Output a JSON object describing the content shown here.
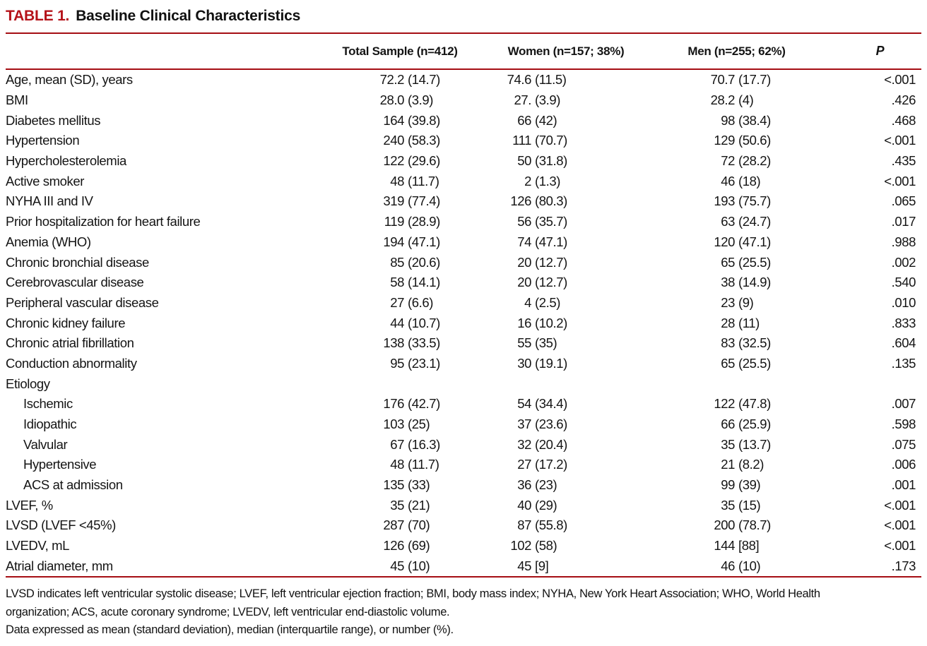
{
  "accent": {
    "title_red": "#b51219",
    "rule_red": "#a50e13"
  },
  "title": {
    "label": "TABLE 1.",
    "text": "Baseline Clinical Characteristics"
  },
  "header": {
    "stub": "",
    "total": "Total Sample (n=412)",
    "women": "Women (n=157; 38%)",
    "men": "Men (n=255; 62%)",
    "p": "P"
  },
  "rows": [
    {
      "label": "Age, mean (SD), years",
      "indent": 0,
      "total": [
        "72.2",
        "(14.7)"
      ],
      "women": [
        "74.6",
        "(11.5)"
      ],
      "men": [
        "70.7",
        "(17.7)"
      ],
      "p": "<.001"
    },
    {
      "label": "BMI",
      "indent": 0,
      "total": [
        "28.0",
        "(3.9)"
      ],
      "women": [
        "27.",
        "(3.9)"
      ],
      "men": [
        "28.2",
        "(4)"
      ],
      "p": ".426"
    },
    {
      "label": "Diabetes mellitus",
      "indent": 0,
      "total": [
        "164",
        "(39.8)"
      ],
      "women": [
        "66",
        "(42)"
      ],
      "men": [
        "98",
        "(38.4)"
      ],
      "p": ".468"
    },
    {
      "label": "Hypertension",
      "indent": 0,
      "total": [
        "240",
        "(58.3)"
      ],
      "women": [
        "111",
        "(70.7)"
      ],
      "men": [
        "129",
        "(50.6)"
      ],
      "p": "<.001"
    },
    {
      "label": "Hypercholesterolemia",
      "indent": 0,
      "total": [
        "122",
        "(29.6)"
      ],
      "women": [
        "50",
        "(31.8)"
      ],
      "men": [
        "72",
        "(28.2)"
      ],
      "p": ".435"
    },
    {
      "label": "Active smoker",
      "indent": 0,
      "total": [
        "48",
        "(11.7)"
      ],
      "women": [
        "2",
        "(1.3)"
      ],
      "men": [
        "46",
        "(18)"
      ],
      "p": "<.001"
    },
    {
      "label": "NYHA III and IV",
      "indent": 0,
      "total": [
        "319",
        "(77.4)"
      ],
      "women": [
        "126",
        "(80.3)"
      ],
      "men": [
        "193",
        "(75.7)"
      ],
      "p": ".065"
    },
    {
      "label": "Prior hospitalization for heart failure",
      "indent": 0,
      "total": [
        "119",
        "(28.9)"
      ],
      "women": [
        "56",
        "(35.7)"
      ],
      "men": [
        "63",
        "(24.7)"
      ],
      "p": ".017"
    },
    {
      "label": "Anemia (WHO)",
      "indent": 0,
      "total": [
        "194",
        "(47.1)"
      ],
      "women": [
        "74",
        "(47.1)"
      ],
      "men": [
        "120",
        "(47.1)"
      ],
      "p": ".988"
    },
    {
      "label": "Chronic bronchial disease",
      "indent": 0,
      "total": [
        "85",
        "(20.6)"
      ],
      "women": [
        "20",
        "(12.7)"
      ],
      "men": [
        "65",
        "(25.5)"
      ],
      "p": ".002"
    },
    {
      "label": "Cerebrovascular disease",
      "indent": 0,
      "total": [
        "58",
        "(14.1)"
      ],
      "women": [
        "20",
        "(12.7)"
      ],
      "men": [
        "38",
        "(14.9)"
      ],
      "p": ".540"
    },
    {
      "label": "Peripheral vascular disease",
      "indent": 0,
      "total": [
        "27",
        "(6.6)"
      ],
      "women": [
        "4",
        "(2.5)"
      ],
      "men": [
        "23",
        "(9)"
      ],
      "p": ".010"
    },
    {
      "label": "Chronic kidney failure",
      "indent": 0,
      "total": [
        "44",
        "(10.7)"
      ],
      "women": [
        "16",
        "(10.2)"
      ],
      "men": [
        "28",
        "(11)"
      ],
      "p": ".833"
    },
    {
      "label": "Chronic atrial fibrillation",
      "indent": 0,
      "total": [
        "138",
        "(33.5)"
      ],
      "women": [
        "55",
        "(35)"
      ],
      "men": [
        "83",
        "(32.5)"
      ],
      "p": ".604"
    },
    {
      "label": "Conduction abnormality",
      "indent": 0,
      "total": [
        "95",
        "(23.1)"
      ],
      "women": [
        "30",
        "(19.1)"
      ],
      "men": [
        "65",
        "(25.5)"
      ],
      "p": ".135"
    },
    {
      "label": "Etiology",
      "indent": 0,
      "total": [
        "",
        ""
      ],
      "women": [
        "",
        ""
      ],
      "men": [
        "",
        ""
      ],
      "p": ""
    },
    {
      "label": "Ischemic",
      "indent": 1,
      "total": [
        "176",
        "(42.7)"
      ],
      "women": [
        "54",
        "(34.4)"
      ],
      "men": [
        "122",
        "(47.8)"
      ],
      "p": ".007"
    },
    {
      "label": "Idiopathic",
      "indent": 1,
      "total": [
        "103",
        "(25)"
      ],
      "women": [
        "37",
        "(23.6)"
      ],
      "men": [
        "66",
        "(25.9)"
      ],
      "p": ".598"
    },
    {
      "label": "Valvular",
      "indent": 1,
      "total": [
        "67",
        "(16.3)"
      ],
      "women": [
        "32",
        "(20.4)"
      ],
      "men": [
        "35",
        "(13.7)"
      ],
      "p": ".075"
    },
    {
      "label": "Hypertensive",
      "indent": 1,
      "total": [
        "48",
        "(11.7)"
      ],
      "women": [
        "27",
        "(17.2)"
      ],
      "men": [
        "21",
        "(8.2)"
      ],
      "p": ".006"
    },
    {
      "label": "ACS at admission",
      "indent": 1,
      "total": [
        "135",
        "(33)"
      ],
      "women": [
        "36",
        "(23)"
      ],
      "men": [
        "99",
        "(39)"
      ],
      "p": ".001"
    },
    {
      "label": "LVEF, %",
      "indent": 0,
      "total": [
        "35",
        "(21)"
      ],
      "women": [
        "40",
        "(29)"
      ],
      "men": [
        "35",
        "(15)"
      ],
      "p": "<.001"
    },
    {
      "label": "LVSD (LVEF <45%)",
      "indent": 0,
      "total": [
        "287",
        "(70)"
      ],
      "women": [
        "87",
        "(55.8)"
      ],
      "men": [
        "200",
        "(78.7)"
      ],
      "p": "<.001"
    },
    {
      "label": "LVEDV, mL",
      "indent": 0,
      "total": [
        "126",
        "(69)"
      ],
      "women": [
        "102",
        "(58)"
      ],
      "men": [
        "144",
        "[88]"
      ],
      "p": "<.001"
    },
    {
      "label": "Atrial diameter, mm",
      "indent": 0,
      "total": [
        "45",
        "(10)"
      ],
      "women": [
        "45",
        "[9]"
      ],
      "men": [
        "46",
        "(10)"
      ],
      "p": ".173"
    }
  ],
  "footnotes": [
    "LVSD indicates left ventricular systolic disease; LVEF, left ventricular ejection fraction; BMI, body mass index; NYHA, New York Heart Association; WHO, World Health",
    "organization; ACS, acute coronary syndrome; LVEDV, left ventricular end-diastolic volume.",
    "Data expressed as mean (standard deviation), median (interquartile range), or number (%)."
  ]
}
